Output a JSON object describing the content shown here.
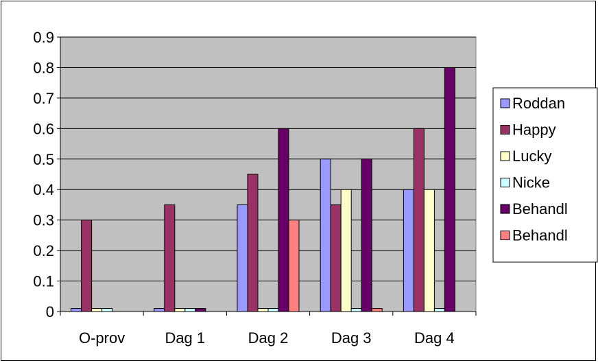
{
  "chart_data": {
    "type": "bar",
    "title": "",
    "xlabel": "",
    "ylabel": "",
    "ylim": [
      0,
      0.9
    ],
    "ytick_labels": [
      "0",
      "0.1",
      "0.2",
      "0.3",
      "0.4",
      "0.5",
      "0.6",
      "0.7",
      "0.8",
      "0.9"
    ],
    "yticks": [
      0,
      0.1,
      0.2,
      0.3,
      0.4,
      0.5,
      0.6,
      0.7,
      0.8,
      0.9
    ],
    "grid": true,
    "legend_position": "right",
    "categories": [
      "O-prov",
      "Dag 1",
      "Dag 2",
      "Dag 3",
      "Dag 4"
    ],
    "series": [
      {
        "name": "Roddan",
        "color": "#9999FF",
        "values": [
          0.01,
          0.01,
          0.35,
          0.5,
          0.4
        ]
      },
      {
        "name": "Happy",
        "color": "#993366",
        "values": [
          0.3,
          0.35,
          0.45,
          0.35,
          0.6
        ]
      },
      {
        "name": "Lucky",
        "color": "#FFFFCC",
        "values": [
          0.01,
          0.01,
          0.01,
          0.4,
          0.4
        ]
      },
      {
        "name": "Nicke",
        "color": "#CCFFFF",
        "values": [
          0.01,
          0.01,
          0.01,
          0.01,
          0.01
        ]
      },
      {
        "name": "Behandl",
        "color": "#660066",
        "values": [
          0,
          0.01,
          0.6,
          0.5,
          0.8
        ]
      },
      {
        "name": "Behandl",
        "color": "#FF8080",
        "values": [
          0,
          0,
          0.3,
          0.01,
          0
        ]
      }
    ],
    "colors": {
      "plot_background": "#C0C0C0",
      "gridline": "#000000",
      "bar_outline": "#000000"
    }
  }
}
